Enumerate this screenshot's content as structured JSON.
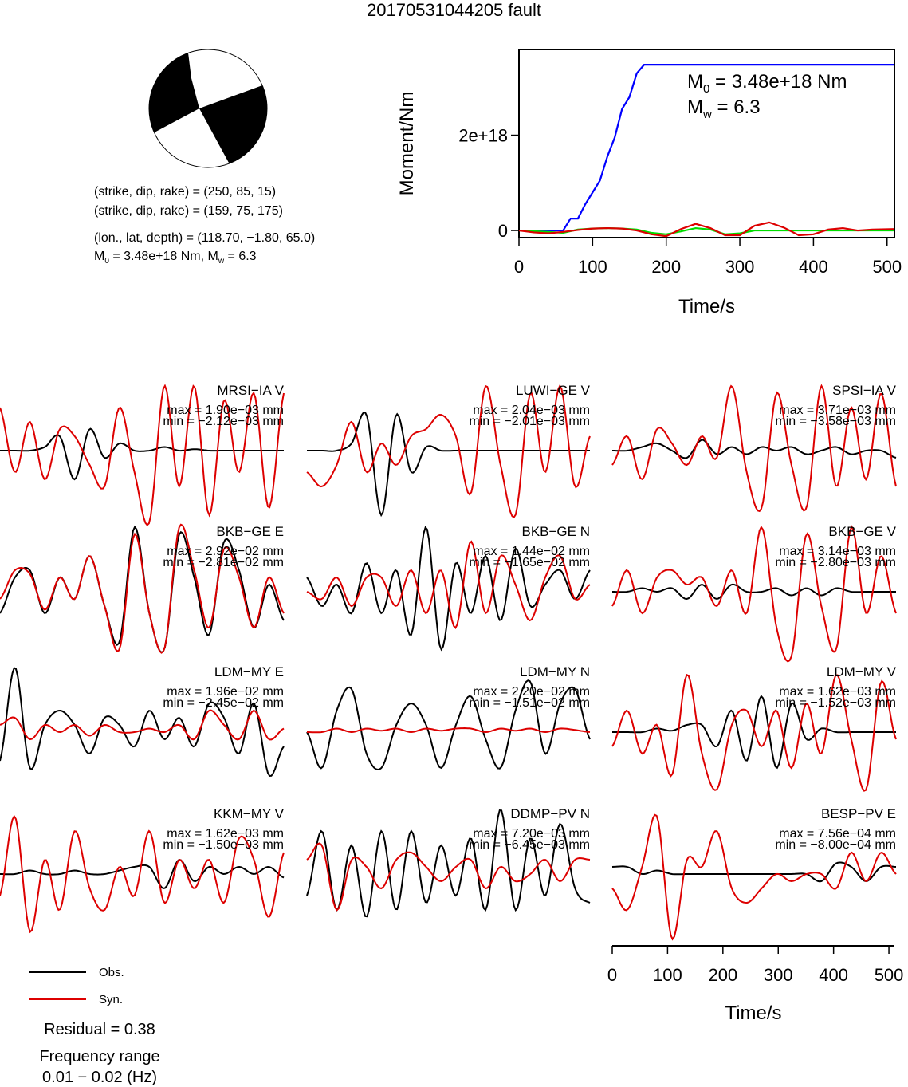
{
  "title": "20170531044205 fault",
  "mechanism": {
    "nodal1": "(strike, dip, rake) = (250, 85, 15)",
    "nodal2": "(strike, dip, rake) = (159, 75, 175)",
    "location": "(lon., lat, depth) = (118.70, −1.80, 65.0)",
    "moment_prefix": "M",
    "moment_sub": "0",
    "moment_rest": " = 3.48e+18 Nm, M",
    "mw_sub": "w",
    "mw_rest": " = 6.3"
  },
  "chart_data": [
    {
      "type": "line",
      "name": "moment-rate",
      "ylabel": "Moment/Nm",
      "xlabel": "Time/s",
      "xlim": [
        0,
        510
      ],
      "ylim": [
        -1.5e+17,
        3.8e+18
      ],
      "xticks": [
        0,
        100,
        200,
        300,
        400,
        500
      ],
      "yticks": [
        {
          "v": 0,
          "label": "0"
        },
        {
          "v": 2e+18,
          "label": "2e+18"
        }
      ],
      "annotations": {
        "m0_main": "M",
        "m0_sub": "0",
        "m0_rest": " = 3.48e+18 Nm",
        "mw_main": "M",
        "mw_sub": "w",
        "mw_rest": " = 6.3"
      },
      "series": [
        {
          "color": "#0000ff",
          "x": [
            0,
            60,
            70,
            80,
            90,
            100,
            110,
            120,
            130,
            140,
            150,
            160,
            170,
            510
          ],
          "y": [
            0,
            0,
            2.5e+17,
            2.5e+17,
            5.5e+17,
            8e+17,
            1.05e+18,
            1.55e+18,
            1.95e+18,
            2.55e+18,
            2.8e+18,
            3.3e+18,
            3.48e+18,
            3.48e+18
          ]
        },
        {
          "color": "#00dd00",
          "x": [
            0,
            40,
            60,
            80,
            100,
            120,
            140,
            160,
            180,
            200,
            220,
            240,
            260,
            280,
            300,
            320,
            350,
            400,
            450,
            510
          ],
          "y": [
            0,
            -3e+16,
            -5e+16,
            2e+16,
            4e+16,
            5e+16,
            4e+16,
            2e+16,
            -5e+16,
            -8e+16,
            -2e+16,
            5e+16,
            2e+16,
            -8e+16,
            -6e+16,
            0,
            0,
            0,
            0,
            0
          ]
        },
        {
          "color": "#dd0000",
          "x": [
            0,
            20,
            40,
            60,
            80,
            100,
            120,
            140,
            160,
            180,
            200,
            220,
            240,
            260,
            280,
            300,
            320,
            340,
            360,
            380,
            400,
            420,
            440,
            460,
            480,
            510
          ],
          "y": [
            0,
            -4e+16,
            -6e+16,
            -3e+16,
            1e+16,
            4e+16,
            5e+16,
            4e+16,
            0.0,
            -8e+16,
            -1.2e+17,
            3e+16,
            1.4e+17,
            5e+16,
            -1e+17,
            -1e+17,
            1e+17,
            1.7e+17,
            6e+16,
            -1e+17,
            -8e+16,
            2e+16,
            5e+16,
            0.0,
            2e+16,
            3e+16
          ]
        }
      ]
    },
    {
      "type": "line",
      "name": "waveforms",
      "xlabel": "Time/s",
      "xlim": [
        0,
        510
      ],
      "xticks": [
        0,
        100,
        200,
        300,
        400,
        500
      ],
      "legend": {
        "obs": "Obs.",
        "syn": "Syn.",
        "obs_color": "#000000",
        "syn_color": "#dd0000"
      },
      "residual": "Residual = 0.38",
      "freq_label": "Frequency range",
      "freq_value": "0.01 − 0.02 (Hz)",
      "stations": [
        {
          "name": "MRSI−IA V",
          "max": "max = 1.90e−03 mm",
          "min": "min = −2.12e−03 mm",
          "obs": [
            0,
            0,
            0,
            0.05,
            0.2,
            -0.4,
            0.3,
            -0.1,
            0.1,
            0,
            0,
            0.05,
            0,
            0.02,
            0,
            0,
            0,
            0,
            0,
            0
          ],
          "syn": [
            0.6,
            -0.3,
            0.4,
            -0.4,
            0.3,
            0.2,
            -0.2,
            -0.5,
            0.6,
            -0.3,
            -1.0,
            0.9,
            -0.5,
            0.9,
            -0.9,
            0.7,
            -0.3,
            0.8,
            -0.8,
            0.8
          ]
        },
        {
          "name": "LUWI−GE V",
          "max": "max = 2.04e−03 mm",
          "min": "min = −2.01e−03 mm",
          "obs": [
            0,
            0,
            0,
            0.1,
            0.5,
            -0.9,
            0.5,
            -0.3,
            0.05,
            0,
            0,
            0,
            0,
            0,
            0,
            0,
            0,
            0,
            0,
            0
          ],
          "syn": [
            -0.3,
            -0.5,
            -0.2,
            0.4,
            -0.3,
            0.1,
            -0.2,
            0.2,
            0.3,
            0.5,
            0.2,
            -0.6,
            0.9,
            -0.2,
            -0.9,
            0.8,
            -0.3,
            0.9,
            -0.5,
            0.2
          ]
        },
        {
          "name": "SPSI−IA V",
          "max": "max = 3.71e−03 mm",
          "min": "min = −3.58e−03 mm",
          "obs": [
            0,
            0,
            0.05,
            0.1,
            0,
            -0.1,
            0.15,
            -0.05,
            0.05,
            -0.05,
            0.05,
            0,
            0.05,
            -0.05,
            0,
            0.05,
            -0.05,
            0,
            0,
            -0.1
          ],
          "syn": [
            -0.2,
            0.2,
            -0.4,
            0.3,
            0.1,
            -0.2,
            0.2,
            -0.1,
            0.9,
            -0.3,
            -0.8,
            0.8,
            -0.2,
            -0.8,
            0.9,
            -0.5,
            0.6,
            -0.4,
            0.8,
            -0.5
          ]
        },
        {
          "name": "BKB−GE E",
          "max": "max = 2.92e−02 mm",
          "min": "min = −2.81e−02 mm",
          "obs": [
            -0.3,
            0.2,
            0.3,
            -0.3,
            0.2,
            -0.1,
            0.5,
            -0.2,
            -0.7,
            0.9,
            -0.3,
            -0.8,
            0.8,
            0.2,
            -0.6,
            0.7,
            0.3,
            -0.5,
            0.1,
            -0.4
          ],
          "syn": [
            -0.1,
            0.3,
            0.25,
            -0.25,
            0.2,
            -0.1,
            0.5,
            -0.2,
            -0.8,
            0.8,
            -0.3,
            -0.8,
            0.9,
            0.3,
            -0.5,
            0.6,
            0.2,
            -0.5,
            0.2,
            -0.3
          ]
        },
        {
          "name": "BKB−GE N",
          "max": "max = 1.44e−02 mm",
          "min": "min = −1.65e−02 mm",
          "obs": [
            0.2,
            -0.2,
            0.1,
            -0.3,
            0.4,
            -0.3,
            0.3,
            -0.6,
            0.9,
            -0.8,
            0.4,
            -0.3,
            0.5,
            -0.4,
            0.6,
            -0.2,
            0.1,
            0.3,
            -0.1,
            0.3
          ],
          "syn": [
            0,
            -0.1,
            0.2,
            -0.2,
            0.2,
            0.2,
            -0.2,
            0.3,
            -0.3,
            0.3,
            -0.5,
            0.7,
            -0.3,
            0.5,
            0.1,
            -0.4,
            0.2,
            0.5,
            -0.1,
            0.1
          ]
        },
        {
          "name": "BKB−GE V",
          "max": "max = 3.14e−03 mm",
          "min": "min = −2.80e−03 mm",
          "obs": [
            0,
            0,
            0.05,
            0,
            0.05,
            -0.1,
            0.1,
            -0.1,
            0.1,
            0,
            0,
            0.05,
            -0.05,
            0.05,
            -0.05,
            0.05,
            0,
            0,
            0,
            0
          ],
          "syn": [
            -0.2,
            0.3,
            -0.3,
            0.2,
            0.3,
            0.1,
            0.2,
            -0.2,
            0.3,
            -0.3,
            0.9,
            -0.5,
            -0.9,
            0.8,
            -0.2,
            -0.8,
            0.9,
            -0.3,
            0.5,
            -0.3
          ]
        },
        {
          "name": "LDM−MY E",
          "max": "max = 1.96e−02 mm",
          "min": "min = −2.45e−02 mm",
          "obs": [
            -0.4,
            0.9,
            -0.5,
            0.1,
            0.3,
            0.1,
            -0.3,
            0.2,
            0.1,
            -0.2,
            0.3,
            -0.1,
            0.2,
            -0.2,
            0.4,
            0.2,
            -0.3,
            0.4,
            -0.6,
            -0.2
          ],
          "syn": [
            0.1,
            0.2,
            -0.1,
            0.1,
            0,
            0.1,
            -0.05,
            0.1,
            0,
            0,
            0.05,
            0,
            0.1,
            -0.1,
            0.3,
            0.1,
            -0.1,
            0.3,
            -0.1,
            0.05
          ]
        },
        {
          "name": "LDM−MY N",
          "max": "max = 2.20e−02 mm",
          "min": "min = −1.51e−02 mm",
          "obs": [
            0,
            -0.5,
            0.3,
            0.6,
            -0.3,
            -0.5,
            0.1,
            0.4,
            0.1,
            -0.5,
            0.1,
            0.5,
            -0.1,
            -0.5,
            0.3,
            0.7,
            -0.3,
            0.4,
            0.6,
            -0.1
          ],
          "syn": [
            0,
            0,
            0.05,
            0,
            0.05,
            0.02,
            0.05,
            0,
            0.05,
            0.02,
            0.05,
            0.05,
            0,
            0.05,
            0.02,
            0.05,
            0,
            0.05,
            0.03,
            0
          ]
        },
        {
          "name": "LDM−MY V",
          "max": "max = 1.62e−03 mm",
          "min": "min = −1.52e−03 mm",
          "obs": [
            0,
            0,
            0,
            0.05,
            0.02,
            0.1,
            0.1,
            -0.2,
            0.3,
            -0.4,
            0.5,
            -0.5,
            0.4,
            -0.1,
            0.05,
            0,
            0,
            0,
            0,
            0
          ],
          "syn": [
            -0.2,
            0.3,
            -0.3,
            0.1,
            -0.6,
            0.8,
            -0.3,
            -0.8,
            0.1,
            0.3,
            -0.2,
            0.3,
            -0.5,
            0.4,
            -0.3,
            0.8,
            -0.1,
            -0.8,
            0.7,
            -0.1
          ]
        },
        {
          "name": "KKM−MY V",
          "max": "max = 1.62e−03 mm",
          "min": "min = −1.50e−03 mm",
          "obs": [
            0,
            0,
            0.05,
            0,
            0,
            0.05,
            0,
            0,
            0.05,
            0.1,
            0.1,
            -0.2,
            0.2,
            -0.1,
            0.1,
            0,
            0.1,
            0,
            0.1,
            -0.05
          ],
          "syn": [
            -0.3,
            0.8,
            -0.8,
            0.2,
            -0.5,
            0.6,
            -0.2,
            -0.5,
            0.1,
            -0.3,
            0.6,
            -0.4,
            0.2,
            -0.2,
            0.2,
            -0.4,
            0.5,
            0.2,
            -0.6,
            0.3
          ]
        },
        {
          "name": "DDMP−PV N",
          "max": "max = 7.20e−03 mm",
          "min": "min = −6.45e−03 mm",
          "obs": [
            -0.3,
            0.6,
            -0.5,
            0.4,
            -0.6,
            0.6,
            -0.5,
            0.6,
            -0.4,
            0.4,
            -0.3,
            0.5,
            -0.5,
            0.9,
            -0.5,
            0.5,
            -0.3,
            0.7,
            -0.2,
            -0.4
          ],
          "syn": [
            0.2,
            0.4,
            -0.5,
            0.2,
            0.1,
            -0.2,
            0.2,
            0.3,
            0.1,
            -0.1,
            0.1,
            0.2,
            -0.2,
            0.1,
            -0.1,
            0,
            0.2,
            -0.1,
            0.2,
            0.2
          ]
        },
        {
          "name": "BESP−PV E",
          "max": "max = 7.56e−04 mm",
          "min": "min = −8.00e−04 mm",
          "obs": [
            0.1,
            0.1,
            0,
            0.05,
            0,
            0,
            0,
            0,
            0,
            0,
            0,
            0,
            0,
            0,
            -0.1,
            0.15,
            0.1,
            -0.1,
            0.1,
            0.1
          ],
          "syn": [
            -0.2,
            -0.5,
            0.1,
            0.8,
            -0.9,
            0.2,
            0.1,
            0.6,
            -0.2,
            -0.4,
            -0.2,
            0,
            -0.1,
            0,
            0,
            -0.2,
            0.3,
            -0.1,
            0.3,
            0
          ]
        }
      ]
    }
  ]
}
